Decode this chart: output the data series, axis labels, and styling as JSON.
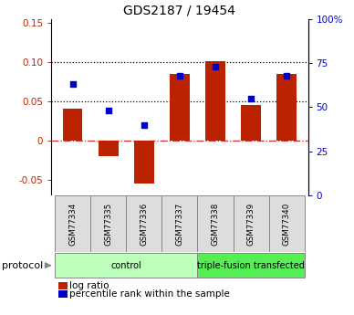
{
  "title": "GDS2187 / 19454",
  "samples": [
    "GSM77334",
    "GSM77335",
    "GSM77336",
    "GSM77337",
    "GSM77338",
    "GSM77339",
    "GSM77340"
  ],
  "log_ratio": [
    0.04,
    -0.02,
    -0.055,
    0.085,
    0.101,
    0.045,
    0.085
  ],
  "percentile_rank_pct": [
    63,
    48,
    40,
    68,
    73,
    55,
    68
  ],
  "bar_color": "#bb2200",
  "dot_color": "#0000cc",
  "ylim_left": [
    -0.07,
    0.155
  ],
  "ylim_right": [
    0,
    100
  ],
  "yticks_left": [
    -0.05,
    0.0,
    0.05,
    0.1,
    0.15
  ],
  "ytick_labels_left": [
    "-0.05",
    "0",
    "0.05",
    "0.10",
    "0.15"
  ],
  "yticks_right": [
    0,
    25,
    50,
    75,
    100
  ],
  "ytick_labels_right": [
    "0",
    "25",
    "50",
    "75",
    "100%"
  ],
  "hlines_dotted": [
    0.05,
    0.1
  ],
  "hline_dash": 0.0,
  "groups": [
    {
      "label": "control",
      "start": 0,
      "end": 3,
      "color": "#bbffbb"
    },
    {
      "label": "triple-fusion transfected",
      "start": 4,
      "end": 6,
      "color": "#55ee55"
    }
  ],
  "protocol_label": "protocol",
  "legend_log_ratio": "log ratio",
  "legend_percentile": "percentile rank within the sample",
  "bar_width": 0.55,
  "background_color": "#ffffff"
}
